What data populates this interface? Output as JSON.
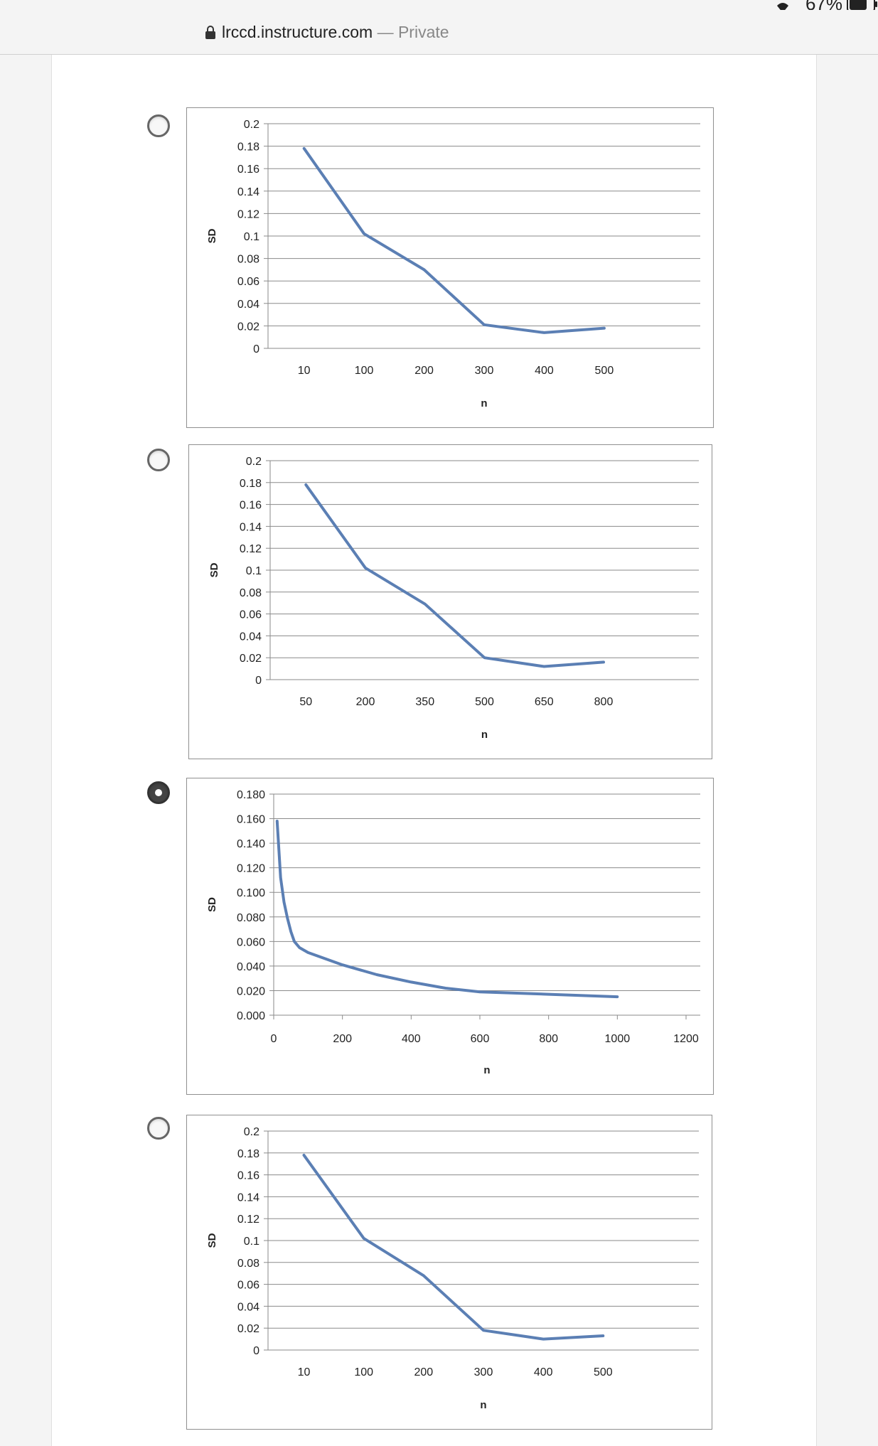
{
  "status_bar": {
    "battery": "67%",
    "wifi_icon": "wifi-icon",
    "battery_icon": "battery-icon"
  },
  "browser": {
    "lock_icon": "lock-icon",
    "url": "lrccd.instructure.com",
    "separator": "—",
    "mode": "Private"
  },
  "options": [
    {
      "selected": false
    },
    {
      "selected": false
    },
    {
      "selected": true
    },
    {
      "selected": false
    }
  ],
  "chart_data": [
    {
      "type": "line",
      "xlabel": "n",
      "ylabel": "SD",
      "categories": [
        "10",
        "100",
        "200",
        "300",
        "400",
        "500"
      ],
      "values": [
        0.178,
        0.102,
        0.07,
        0.021,
        0.014,
        0.018
      ],
      "ylim": [
        0,
        0.2
      ],
      "yticks": [
        "0",
        "0.02",
        "0.04",
        "0.06",
        "0.08",
        "0.1",
        "0.12",
        "0.14",
        "0.16",
        "0.18",
        "0.2"
      ],
      "grid": true,
      "line_color": "#5b7fb4"
    },
    {
      "type": "line",
      "xlabel": "n",
      "ylabel": "SD",
      "categories": [
        "50",
        "200",
        "350",
        "500",
        "650",
        "800"
      ],
      "values": [
        0.178,
        0.102,
        0.069,
        0.02,
        0.012,
        0.016
      ],
      "ylim": [
        0,
        0.2
      ],
      "yticks": [
        "0",
        "0.02",
        "0.04",
        "0.06",
        "0.08",
        "0.1",
        "0.12",
        "0.14",
        "0.16",
        "0.18",
        "0.2"
      ],
      "grid": true,
      "line_color": "#5b7fb4"
    },
    {
      "type": "line",
      "xlabel": "n",
      "ylabel": "SD",
      "x": [
        10,
        20,
        30,
        40,
        50,
        60,
        75,
        100,
        200,
        300,
        400,
        500,
        600,
        700,
        800,
        900,
        1000
      ],
      "y": [
        0.158,
        0.112,
        0.092,
        0.079,
        0.068,
        0.06,
        0.055,
        0.051,
        0.041,
        0.033,
        0.027,
        0.022,
        0.019,
        0.018,
        0.017,
        0.016,
        0.015
      ],
      "xlim": [
        0,
        1200
      ],
      "ylim": [
        0,
        0.18
      ],
      "xticks": [
        "0",
        "200",
        "400",
        "600",
        "800",
        "1000",
        "1200"
      ],
      "yticks": [
        "0.000",
        "0.020",
        "0.040",
        "0.060",
        "0.080",
        "0.100",
        "0.120",
        "0.140",
        "0.160",
        "0.180"
      ],
      "grid": true,
      "line_color": "#5b7fb4"
    },
    {
      "type": "line",
      "xlabel": "n",
      "ylabel": "SD",
      "categories": [
        "10",
        "100",
        "200",
        "300",
        "400",
        "500"
      ],
      "values": [
        0.178,
        0.102,
        0.068,
        0.018,
        0.01,
        0.013
      ],
      "ylim": [
        0,
        0.2
      ],
      "yticks": [
        "0",
        "0.02",
        "0.04",
        "0.06",
        "0.08",
        "0.1",
        "0.12",
        "0.14",
        "0.16",
        "0.18",
        "0.2"
      ],
      "grid": true,
      "line_color": "#5b7fb4"
    }
  ]
}
